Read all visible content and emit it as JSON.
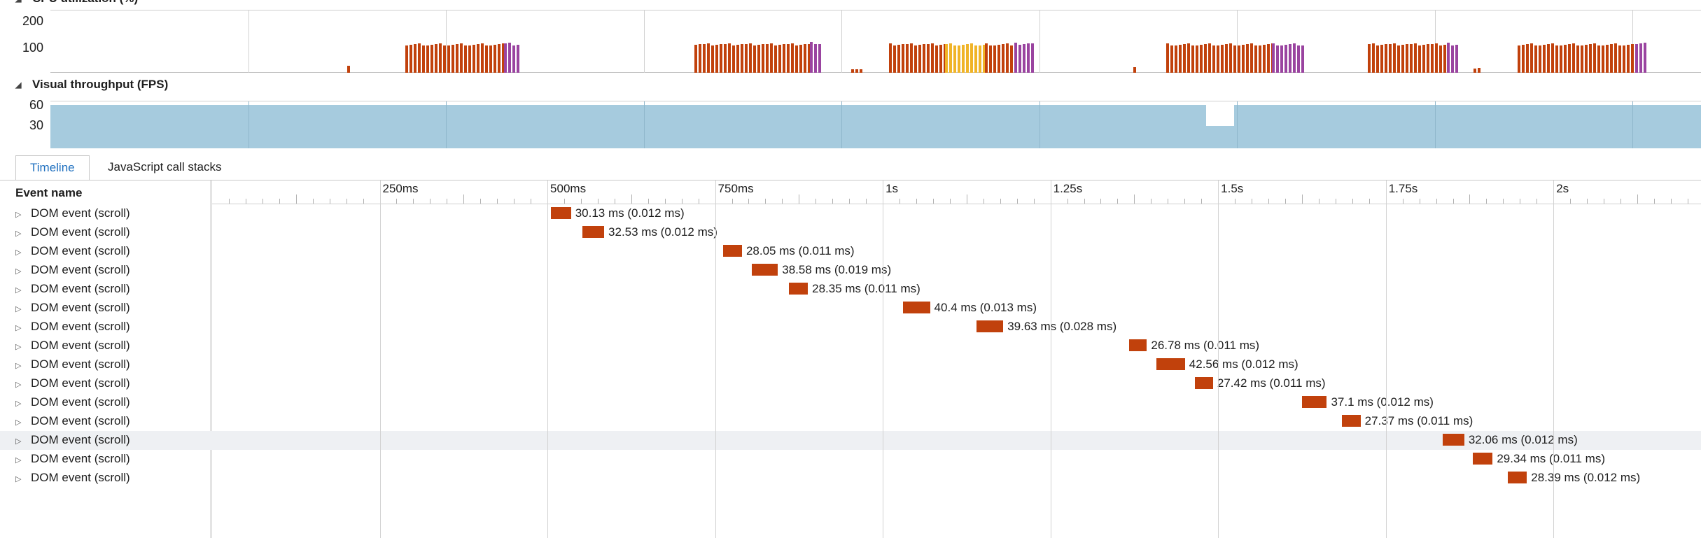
{
  "cpu_section": {
    "title": "CPU utilization (%)",
    "y_ticks": [
      "200",
      "100"
    ],
    "colors": {
      "scripting": "#c1410c",
      "gc": "#f0b428",
      "other": "#9a44a0",
      "idle": "#8cbf3f"
    },
    "bursts": [
      {
        "start": 0.18,
        "end": 0.182,
        "level": 0.22,
        "kind": "scripting"
      },
      {
        "start": 0.215,
        "end": 0.275,
        "level": 0.93,
        "kind": "scripting"
      },
      {
        "start": 0.275,
        "end": 0.283,
        "level": 0.95,
        "kind": "other"
      },
      {
        "start": 0.39,
        "end": 0.46,
        "level": 0.93,
        "kind": "scripting"
      },
      {
        "start": 0.46,
        "end": 0.466,
        "level": 0.98,
        "kind": "other"
      },
      {
        "start": 0.485,
        "end": 0.491,
        "level": 0.12,
        "kind": "scripting"
      },
      {
        "start": 0.508,
        "end": 0.542,
        "level": 0.93,
        "kind": "scripting"
      },
      {
        "start": 0.542,
        "end": 0.566,
        "level": 0.93,
        "kind": "gc"
      },
      {
        "start": 0.566,
        "end": 0.584,
        "level": 0.93,
        "kind": "scripting"
      },
      {
        "start": 0.584,
        "end": 0.596,
        "level": 0.95,
        "kind": "other"
      },
      {
        "start": 0.656,
        "end": 0.658,
        "level": 0.2,
        "kind": "scripting"
      },
      {
        "start": 0.676,
        "end": 0.74,
        "level": 0.93,
        "kind": "scripting"
      },
      {
        "start": 0.74,
        "end": 0.758,
        "level": 0.93,
        "kind": "other"
      },
      {
        "start": 0.798,
        "end": 0.846,
        "level": 0.93,
        "kind": "scripting"
      },
      {
        "start": 0.846,
        "end": 0.852,
        "level": 0.95,
        "kind": "other"
      },
      {
        "start": 0.862,
        "end": 0.866,
        "level": 0.15,
        "kind": "scripting"
      },
      {
        "start": 0.889,
        "end": 0.96,
        "level": 0.93,
        "kind": "scripting"
      },
      {
        "start": 0.96,
        "end": 0.966,
        "level": 0.98,
        "kind": "other"
      }
    ]
  },
  "fps_section": {
    "title": "Visual throughput (FPS)",
    "y_ticks": [
      "60",
      "30"
    ],
    "fill_color": "#a6cbde",
    "dip": {
      "start": 0.7,
      "end": 0.717,
      "fps": 30
    },
    "baseline_fps": 58
  },
  "tabs": [
    {
      "label": "Timeline",
      "active": true
    },
    {
      "label": "JavaScript call stacks",
      "active": false
    }
  ],
  "column_header": "Event name",
  "ruler_labels": [
    "250ms",
    "500ms",
    "750ms",
    "1s",
    "1.25s",
    "1.5s",
    "1.75s",
    "2s"
  ],
  "ruler_range_ms": [
    0,
    2220
  ],
  "events": [
    {
      "name": "DOM event (scroll)",
      "start_ms": 505,
      "duration_ms": 30.13,
      "label": "30.13 ms (0.012 ms)",
      "selected": false
    },
    {
      "name": "DOM event (scroll)",
      "start_ms": 552,
      "duration_ms": 32.53,
      "label": "32.53 ms (0.012 ms)",
      "selected": false
    },
    {
      "name": "DOM event (scroll)",
      "start_ms": 762,
      "duration_ms": 28.05,
      "label": "28.05 ms (0.011 ms)",
      "selected": false
    },
    {
      "name": "DOM event (scroll)",
      "start_ms": 805,
      "duration_ms": 38.58,
      "label": "38.58 ms (0.019 ms)",
      "selected": false
    },
    {
      "name": "DOM event (scroll)",
      "start_ms": 860,
      "duration_ms": 28.35,
      "label": "28.35 ms (0.011 ms)",
      "selected": false
    },
    {
      "name": "DOM event (scroll)",
      "start_ms": 1030,
      "duration_ms": 40.4,
      "label": "40.4 ms (0.013 ms)",
      "selected": false
    },
    {
      "name": "DOM event (scroll)",
      "start_ms": 1140,
      "duration_ms": 39.63,
      "label": "39.63 ms (0.028 ms)",
      "selected": false
    },
    {
      "name": "DOM event (scroll)",
      "start_ms": 1367,
      "duration_ms": 26.78,
      "label": "26.78 ms (0.011 ms)",
      "selected": false
    },
    {
      "name": "DOM event (scroll)",
      "start_ms": 1408,
      "duration_ms": 42.56,
      "label": "42.56 ms (0.012 ms)",
      "selected": false
    },
    {
      "name": "DOM event (scroll)",
      "start_ms": 1465,
      "duration_ms": 27.42,
      "label": "27.42 ms (0.011 ms)",
      "selected": false
    },
    {
      "name": "DOM event (scroll)",
      "start_ms": 1625,
      "duration_ms": 37.1,
      "label": "37.1 ms (0.012 ms)",
      "selected": false
    },
    {
      "name": "DOM event (scroll)",
      "start_ms": 1685,
      "duration_ms": 27.37,
      "label": "27.37 ms (0.011 ms)",
      "selected": false
    },
    {
      "name": "DOM event (scroll)",
      "start_ms": 1835,
      "duration_ms": 32.06,
      "label": "32.06 ms (0.012 ms)",
      "selected": true
    },
    {
      "name": "DOM event (scroll)",
      "start_ms": 1880,
      "duration_ms": 29.34,
      "label": "29.34 ms (0.011 ms)",
      "selected": false
    },
    {
      "name": "DOM event (scroll)",
      "start_ms": 1932,
      "duration_ms": 28.39,
      "label": "28.39 ms (0.012 ms)",
      "selected": false
    }
  ],
  "bar_color": "#c1410c"
}
